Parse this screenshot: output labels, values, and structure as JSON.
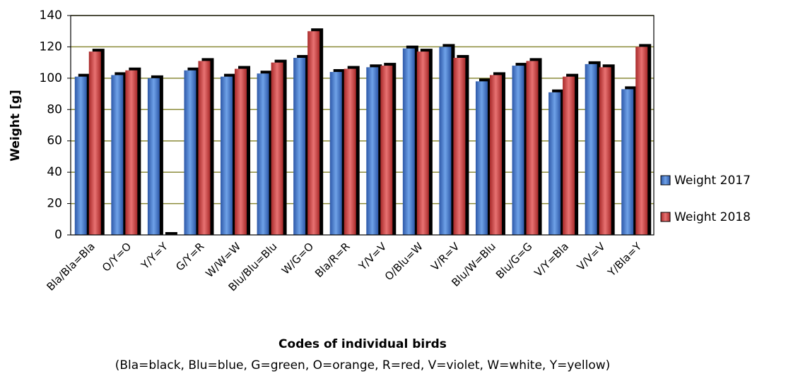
{
  "chart_data": {
    "type": "bar",
    "y_label": "Weight [g]",
    "x_label": "Codes of individual birds",
    "subtitle": "(Bla=black, Blu=blue, G=green, O=orange, R=red, V=violet, W=white, Y=yellow)",
    "categories": [
      "Bla/Bla=Bla",
      "O/Y=O",
      "Y/Y=Y",
      "G/Y=R",
      "W/W=W",
      "Blu/Blu=Blu",
      "W/G=O",
      "Bla/R=R",
      "Y/V=V",
      "O/Blu=W",
      "V/R=V",
      "Blu/W=Blu",
      "Blu/G=G",
      "V/Y=Bla",
      "V/V=V",
      "Y/Bla=Y"
    ],
    "series": [
      {
        "name": "Weight 2017",
        "color": "#3b6fc6",
        "values": [
          101,
          102,
          100,
          105,
          101,
          103,
          113,
          104,
          107,
          119,
          120,
          98,
          108,
          91,
          109,
          93
        ]
      },
      {
        "name": "Weight 2018",
        "color": "#c43c3c",
        "values": [
          117,
          105,
          0,
          111,
          106,
          110,
          130,
          106,
          108,
          117,
          113,
          102,
          111,
          101,
          107,
          120
        ]
      }
    ],
    "ylim": [
      0,
      140
    ],
    "yticks": [
      0,
      20,
      40,
      60,
      80,
      100,
      120,
      140
    ],
    "grid": true,
    "grid_color": "#8b8b3a",
    "legend": "right"
  }
}
